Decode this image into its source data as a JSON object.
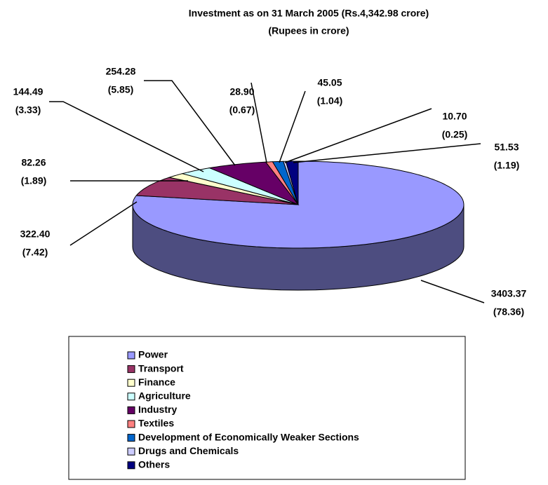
{
  "chart_data": {
    "type": "pie3d",
    "title": "Investment as on 31 March 2005 (Rs.4,342.98 crore)",
    "subtitle": "(Rupees in crore)",
    "categories": [
      "Power",
      "Transport",
      "Finance",
      "Agriculture",
      "Industry",
      "Textiles",
      "Development of Economically Weaker Sections",
      "Drugs and Chemicals",
      "Others"
    ],
    "values": [
      3403.37,
      322.4,
      82.26,
      144.49,
      254.28,
      28.9,
      45.05,
      10.7,
      51.53
    ],
    "value_labels": [
      "3403.37",
      "322.40",
      "82.26",
      "144.49",
      "254.28",
      "28.90",
      "45.05",
      "10.70",
      "51.53"
    ],
    "percent_labels": [
      "(78.36)",
      "(7.42)",
      "(1.89)",
      "(3.33)",
      "(5.85)",
      "(0.67)",
      "(1.04)",
      "(0.25)",
      "(1.19)"
    ],
    "colors": [
      "#9999ff",
      "#993366",
      "#ffffcc",
      "#ccffff",
      "#660066",
      "#ff8080",
      "#0066cc",
      "#ccccff",
      "#000080"
    ],
    "legend": "bottom"
  }
}
